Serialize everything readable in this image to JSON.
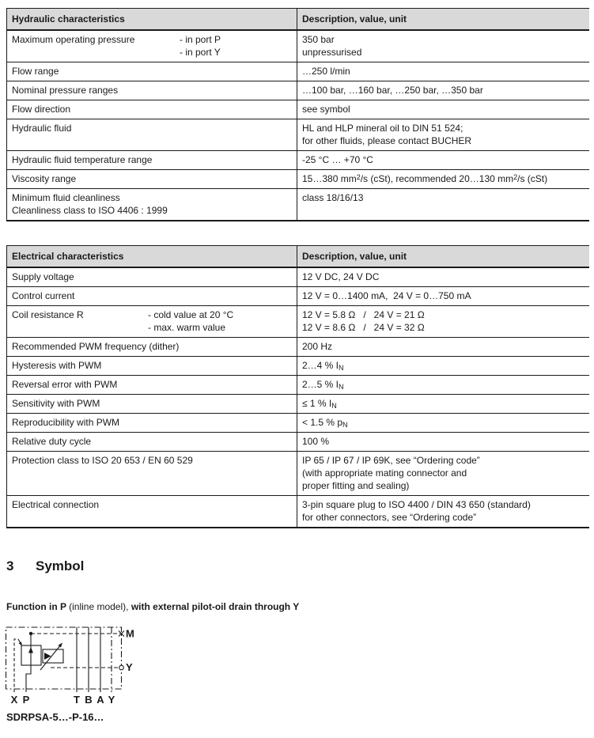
{
  "colors": {
    "header_bg": "#d9d9d9",
    "border": "#1a1a1a",
    "text": "#1a1a1a"
  },
  "hydraulic_table": {
    "header": {
      "col1": "Hydraulic characteristics",
      "col2": "Description, value, unit"
    },
    "rows": [
      {
        "label_lines": [
          "Maximum operating pressure"
        ],
        "sub_lines": [
          "- in port P",
          "- in port Y"
        ],
        "value_lines": [
          "350 bar",
          "unpressurised"
        ]
      },
      {
        "label_lines": [
          "Flow range"
        ],
        "value_lines": [
          "…250 l/min"
        ]
      },
      {
        "label_lines": [
          "Nominal pressure ranges"
        ],
        "value_lines": [
          "…100 bar, …160 bar, …250 bar, …350 bar"
        ]
      },
      {
        "label_lines": [
          "Flow direction"
        ],
        "value_lines": [
          "see symbol"
        ]
      },
      {
        "label_lines": [
          "Hydraulic fluid"
        ],
        "value_lines": [
          "HL and HLP mineral oil to DIN 51 524;",
          "for other fluids, please contact BUCHER"
        ]
      },
      {
        "label_lines": [
          "Hydraulic fluid temperature range"
        ],
        "value_lines": [
          "-25 °C … +70 °C"
        ]
      },
      {
        "label_lines": [
          "Viscosity range"
        ],
        "value_lines": [
          "15…380 mm^2^/s (cSt), recommended 20…130 mm^2^/s (cSt)"
        ]
      },
      {
        "label_lines": [
          "Minimum fluid cleanliness",
          "Cleanliness class to ISO 4406 : 1999"
        ],
        "value_lines": [
          "class 18/16/13"
        ]
      }
    ]
  },
  "electrical_table": {
    "header": {
      "col1": "Electrical characteristics",
      "col2": "Description, value, unit"
    },
    "rows": [
      {
        "label_lines": [
          "Supply voltage"
        ],
        "value_lines": [
          "12 V DC, 24 V DC"
        ]
      },
      {
        "label_lines": [
          "Control current"
        ],
        "value_lines": [
          "12 V = 0…1400 mA,  24 V = 0…750 mA"
        ]
      },
      {
        "label_lines": [
          "Coil resistance R"
        ],
        "sub_lines": [
          "- cold value at 20 °C",
          "- max. warm value"
        ],
        "value_lines": [
          "12 V = 5.8 Ω   /   24 V = 21 Ω",
          "12 V = 8.6 Ω   /   24 V = 32 Ω"
        ]
      },
      {
        "label_lines": [
          "Recommended PWM frequency (dither)"
        ],
        "value_lines": [
          "200 Hz"
        ]
      },
      {
        "label_lines": [
          "Hysteresis with PWM"
        ],
        "value_lines": [
          "2…4 % I~N~"
        ]
      },
      {
        "label_lines": [
          "Reversal error with PWM"
        ],
        "value_lines": [
          "2…5 % I~N~"
        ]
      },
      {
        "label_lines": [
          "Sensitivity with PWM"
        ],
        "value_lines": [
          "≤ 1 % I~N~"
        ]
      },
      {
        "label_lines": [
          "Reproducibility with PWM"
        ],
        "value_lines": [
          "< 1.5 % p~N~"
        ]
      },
      {
        "label_lines": [
          "Relative duty cycle"
        ],
        "value_lines": [
          "100 %"
        ]
      },
      {
        "label_lines": [
          "Protection class to ISO 20 653 / EN 60 529"
        ],
        "value_lines": [
          "IP 65 / IP 67 / IP 69K, see “Ordering code”",
          "(with appropriate mating connector and",
          "proper fitting and sealing)"
        ]
      },
      {
        "label_lines": [
          "Electrical connection"
        ],
        "value_lines": [
          "3-pin square plug to ISO 4400 / DIN 43 650 (standard)",
          "for other connectors, see “Ordering code”"
        ]
      }
    ]
  },
  "symbol_section": {
    "heading_number": "3",
    "heading_title": "Symbol",
    "caption_parts": [
      {
        "text": "Function in P "
      },
      {
        "text": "(inline model), "
      },
      {
        "text": "with external pilot-oil drain through Y"
      }
    ],
    "schematic": {
      "bottom_ports": [
        "X",
        "P",
        "T",
        "B",
        "A",
        "Y"
      ],
      "side_ports": {
        "m": "M",
        "y": "Y"
      }
    },
    "model_code": "SDRPSA-5…-P-16…"
  }
}
